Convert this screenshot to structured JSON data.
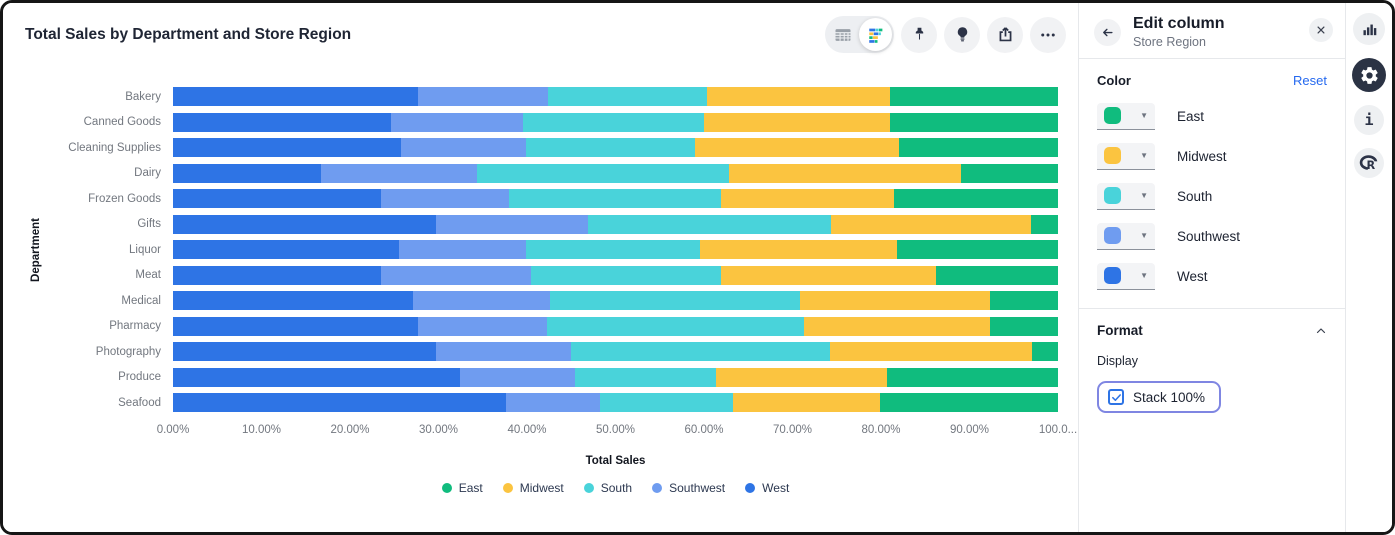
{
  "card": {
    "title": "Total Sales by Department and Store Region",
    "toolbar_icons": [
      "table-view-icon",
      "chart-view-icon",
      "pin-icon",
      "lightbulb-icon",
      "share-icon",
      "more-icon"
    ]
  },
  "chart_data": {
    "type": "bar",
    "variant": "horizontal-stacked-100-percent",
    "title": "Total Sales by Department and Store Region",
    "xlabel": "Total Sales",
    "ylabel": "Department",
    "xlim": [
      0,
      100
    ],
    "grid": false,
    "legend_position": "bottom",
    "x_tick_labels": [
      "0.00%",
      "10.00%",
      "20.00%",
      "30.00%",
      "40.00%",
      "50.00%",
      "60.00%",
      "70.00%",
      "80.00%",
      "90.00%",
      "100.0..."
    ],
    "categories": [
      "Bakery",
      "Canned Goods",
      "Cleaning Supplies",
      "Dairy",
      "Frozen Goods",
      "Gifts",
      "Liquor",
      "Meat",
      "Medical",
      "Pharmacy",
      "Photography",
      "Produce",
      "Seafood"
    ],
    "stack_order_note": "series listed left-to-right in each bar; values are percent of row total",
    "series": [
      {
        "name": "West",
        "color": "#2e74e5",
        "values": [
          27.7,
          24.6,
          25.8,
          16.7,
          23.5,
          29.7,
          25.5,
          23.5,
          27.1,
          27.7,
          29.7,
          32.4,
          37.6
        ]
      },
      {
        "name": "Southwest",
        "color": "#6f9cf0",
        "values": [
          14.7,
          14.9,
          14.1,
          17.7,
          14.5,
          17.2,
          14.4,
          17.0,
          15.5,
          14.6,
          15.3,
          13.0,
          10.7
        ]
      },
      {
        "name": "South",
        "color": "#49d3da",
        "values": [
          17.9,
          20.5,
          19.1,
          28.4,
          23.9,
          27.4,
          19.7,
          21.4,
          28.3,
          29.0,
          29.2,
          16.0,
          15.0
        ]
      },
      {
        "name": "Midwest",
        "color": "#fbc440",
        "values": [
          20.7,
          21.0,
          23.0,
          26.2,
          19.6,
          22.6,
          22.2,
          24.3,
          21.4,
          21.0,
          22.9,
          19.3,
          16.6
        ]
      },
      {
        "name": "East",
        "color": "#10bc7e",
        "values": [
          19.0,
          19.0,
          18.0,
          11.0,
          18.5,
          3.1,
          18.2,
          13.8,
          7.7,
          7.7,
          2.9,
          19.3,
          20.1
        ]
      }
    ],
    "legend_order": [
      "East",
      "Midwest",
      "South",
      "Southwest",
      "West"
    ]
  },
  "panel": {
    "title": "Edit column",
    "subtitle": "Store Region",
    "back_icon": "arrow-left-icon",
    "close_icon": "close-icon",
    "color_section": {
      "label": "Color",
      "reset_label": "Reset",
      "rows": [
        {
          "label": "East",
          "color": "#10bc7e"
        },
        {
          "label": "Midwest",
          "color": "#fbc440"
        },
        {
          "label": "South",
          "color": "#49d3da"
        },
        {
          "label": "Southwest",
          "color": "#6f9cf0"
        },
        {
          "label": "West",
          "color": "#2e74e5"
        }
      ]
    },
    "format_section": {
      "label": "Format",
      "collapse_icon": "chevron-up-icon",
      "display_label": "Display",
      "stack_checkbox": {
        "label": "Stack 100%",
        "checked": true
      }
    }
  },
  "rail": {
    "icons": [
      "bar-chart-icon",
      "gear-icon",
      "info-icon",
      "r-logo-icon"
    ],
    "active_icon": "gear-icon"
  }
}
